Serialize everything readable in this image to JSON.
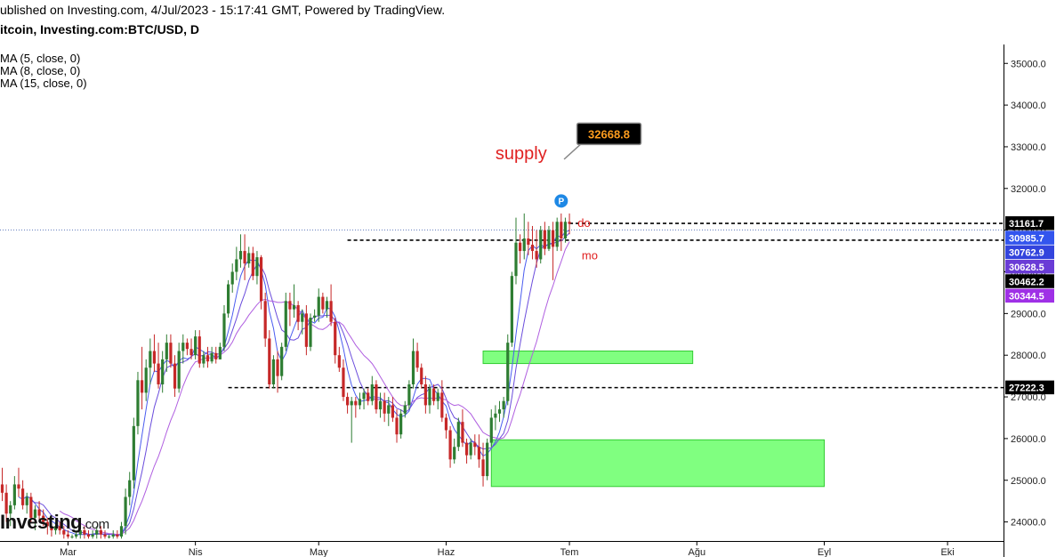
{
  "header": {
    "published": "ublished on Investing.com, 4/Jul/2023 - 15:17:41 GMT, Powered by TradingView.",
    "title": "itcoin, Investing.com:BTC/USD, D"
  },
  "indicators": [
    "MA (5, close, 0)",
    "MA (8, close, 0)",
    "MA (15, close, 0)"
  ],
  "logo": {
    "main": "Investing",
    "suffix": ".com"
  },
  "colors": {
    "up": "#2e7d32",
    "down": "#c62828",
    "zone": "#80ff80",
    "zone_border": "#33cc33",
    "ma5": "#4a5cf0",
    "ma8": "#6a4cdc",
    "ma15": "#b05fe0",
    "text_red": "#e02020"
  },
  "chart_data": {
    "type": "candlestick",
    "yaxis": {
      "range": [
        23600,
        35400
      ],
      "ticks": [
        24000,
        25000,
        26000,
        27000,
        28000,
        29000,
        30000,
        31000,
        32000,
        33000,
        34000,
        35000
      ],
      "tick_labels": [
        "24000.0",
        "25000.0",
        "26000.0",
        "27000.0",
        "28000.0",
        "29000.0",
        "30000.0",
        "31000.0",
        "32000.0",
        "33000.0",
        "34000.0",
        "35000.0"
      ]
    },
    "xaxis": {
      "labels": [
        "Mar",
        "Nis",
        "May",
        "Haz",
        "Tem",
        "Ağu",
        "Eyl",
        "Eki"
      ],
      "label_days": [
        16,
        47,
        77,
        108,
        138,
        169,
        200,
        230
      ]
    },
    "candles": [
      [
        0,
        24900,
        25300,
        24500,
        24700
      ],
      [
        1,
        24700,
        24900,
        24000,
        24200
      ],
      [
        2,
        24200,
        24500,
        23900,
        24400
      ],
      [
        3,
        24400,
        25100,
        24300,
        24900
      ],
      [
        4,
        24900,
        25300,
        24600,
        24800
      ],
      [
        5,
        24800,
        25000,
        24300,
        24400
      ],
      [
        6,
        24400,
        24700,
        24200,
        24600
      ],
      [
        7,
        24600,
        24700,
        24000,
        24100
      ],
      [
        8,
        24100,
        24400,
        23800,
        24300
      ],
      [
        9,
        24300,
        24500,
        24000,
        24150
      ],
      [
        10,
        24150,
        24300,
        23900,
        24000
      ],
      [
        11,
        24000,
        24100,
        23700,
        23900
      ],
      [
        12,
        23900,
        24000,
        23650,
        23800
      ],
      [
        13,
        23800,
        24000,
        23700,
        23900
      ],
      [
        14,
        23900,
        24000,
        23700,
        23800
      ],
      [
        15,
        23800,
        23900,
        23600,
        23700
      ],
      [
        16,
        23700,
        23800,
        23600,
        23650
      ],
      [
        17,
        23650,
        23700,
        23600,
        23650
      ],
      [
        18,
        23650,
        23800,
        23600,
        23700
      ],
      [
        19,
        23700,
        23900,
        23600,
        23800
      ],
      [
        20,
        23800,
        23900,
        23600,
        23700
      ],
      [
        21,
        23700,
        23800,
        23600,
        23650
      ],
      [
        22,
        23650,
        23800,
        23600,
        23700
      ],
      [
        23,
        23700,
        23900,
        23600,
        23800
      ],
      [
        24,
        23800,
        23900,
        23600,
        23700
      ],
      [
        25,
        23700,
        23800,
        23600,
        23650
      ],
      [
        26,
        23650,
        23700,
        23600,
        23650
      ],
      [
        27,
        23650,
        23800,
        23600,
        23700
      ],
      [
        28,
        23700,
        23800,
        23600,
        23650
      ],
      [
        29,
        23650,
        24000,
        23600,
        23900
      ],
      [
        30,
        23900,
        24800,
        23700,
        24600
      ],
      [
        31,
        24600,
        25200,
        24400,
        25000
      ],
      [
        32,
        25000,
        26500,
        24800,
        26300
      ],
      [
        33,
        26300,
        27600,
        26100,
        27400
      ],
      [
        34,
        27400,
        28200,
        26700,
        27100
      ],
      [
        35,
        27100,
        27900,
        26900,
        27700
      ],
      [
        36,
        27700,
        28400,
        27300,
        28100
      ],
      [
        37,
        28100,
        28500,
        27600,
        27800
      ],
      [
        38,
        27800,
        28300,
        27200,
        27300
      ],
      [
        39,
        27300,
        28100,
        27100,
        27900
      ],
      [
        40,
        27900,
        28500,
        27600,
        28300
      ],
      [
        41,
        28300,
        28500,
        27700,
        27800
      ],
      [
        42,
        27800,
        28000,
        27000,
        27200
      ],
      [
        43,
        27200,
        28300,
        27100,
        28100
      ],
      [
        44,
        28100,
        28500,
        27800,
        28300
      ],
      [
        45,
        28300,
        28400,
        28000,
        28150
      ],
      [
        46,
        28150,
        28400,
        27900,
        28000
      ],
      [
        47,
        28000,
        28600,
        27900,
        28450
      ],
      [
        48,
        28450,
        28600,
        27700,
        27800
      ],
      [
        49,
        27800,
        28100,
        27700,
        28000
      ],
      [
        50,
        28000,
        28200,
        27700,
        27850
      ],
      [
        51,
        27850,
        28200,
        27800,
        28050
      ],
      [
        52,
        28050,
        28200,
        27800,
        27900
      ],
      [
        53,
        27900,
        28300,
        27900,
        28200
      ],
      [
        54,
        28200,
        29200,
        28100,
        29000
      ],
      [
        55,
        29000,
        29800,
        28900,
        29700
      ],
      [
        56,
        29700,
        30200,
        29500,
        30000
      ],
      [
        57,
        30000,
        30600,
        29800,
        30300
      ],
      [
        58,
        30300,
        30900,
        30100,
        30500
      ],
      [
        59,
        30500,
        30900,
        29800,
        30200
      ],
      [
        60,
        30200,
        30600,
        30100,
        30450
      ],
      [
        61,
        30450,
        30600,
        29800,
        29900
      ],
      [
        62,
        29900,
        30500,
        29700,
        30350
      ],
      [
        63,
        30350,
        30400,
        29100,
        29300
      ],
      [
        64,
        29300,
        29500,
        28200,
        28400
      ],
      [
        65,
        28400,
        28600,
        27200,
        27300
      ],
      [
        66,
        27300,
        28000,
        27200,
        27900
      ],
      [
        67,
        27900,
        28100,
        27100,
        27500
      ],
      [
        68,
        27500,
        28300,
        27400,
        28200
      ],
      [
        69,
        28200,
        29500,
        28100,
        29300
      ],
      [
        70,
        29300,
        29500,
        28700,
        29100
      ],
      [
        71,
        29100,
        29700,
        28900,
        29200
      ],
      [
        72,
        29200,
        29300,
        28600,
        28800
      ],
      [
        73,
        28800,
        29100,
        28500,
        29000
      ],
      [
        74,
        29000,
        29200,
        28000,
        28200
      ],
      [
        75,
        28200,
        29000,
        28100,
        28900
      ],
      [
        76,
        28900,
        29100,
        28800,
        28950
      ],
      [
        77,
        28950,
        29600,
        28800,
        29400
      ],
      [
        78,
        29400,
        29500,
        29000,
        29100
      ],
      [
        79,
        29100,
        29400,
        28900,
        29300
      ],
      [
        80,
        29300,
        29700,
        28700,
        28800
      ],
      [
        81,
        28800,
        28900,
        27800,
        28000
      ],
      [
        82,
        28000,
        28200,
        27600,
        27700
      ],
      [
        83,
        27700,
        27900,
        26900,
        27000
      ],
      [
        84,
        27000,
        27100,
        26600,
        26800
      ],
      [
        85,
        26800,
        27000,
        25900,
        26900
      ],
      [
        86,
        26900,
        27000,
        26500,
        26800
      ],
      [
        87,
        26800,
        27100,
        26700,
        26950
      ],
      [
        88,
        26950,
        27200,
        26700,
        27100
      ],
      [
        89,
        27100,
        27200,
        26800,
        26900
      ],
      [
        90,
        26900,
        27500,
        26800,
        27300
      ],
      [
        91,
        27300,
        27400,
        26600,
        26700
      ],
      [
        92,
        26700,
        27100,
        26500,
        26900
      ],
      [
        93,
        26900,
        27100,
        26400,
        26600
      ],
      [
        94,
        26600,
        27000,
        26300,
        26800
      ],
      [
        95,
        26800,
        27000,
        26400,
        26500
      ],
      [
        96,
        26500,
        26700,
        25900,
        26100
      ],
      [
        97,
        26100,
        26700,
        26000,
        26600
      ],
      [
        98,
        26600,
        26900,
        26500,
        26800
      ],
      [
        99,
        26800,
        27400,
        26700,
        27300
      ],
      [
        100,
        27300,
        28400,
        27200,
        28100
      ],
      [
        101,
        28100,
        28300,
        27600,
        27700
      ],
      [
        102,
        27700,
        27800,
        27200,
        27300
      ],
      [
        103,
        27300,
        27500,
        26600,
        26800
      ],
      [
        104,
        26800,
        27300,
        26600,
        27200
      ],
      [
        105,
        27200,
        27300,
        26800,
        26900
      ],
      [
        106,
        26900,
        27200,
        26700,
        27100
      ],
      [
        107,
        27100,
        27400,
        26400,
        26500
      ],
      [
        108,
        26500,
        26600,
        26000,
        26200
      ],
      [
        109,
        26200,
        26300,
        25300,
        25500
      ],
      [
        110,
        25500,
        26000,
        25400,
        25800
      ],
      [
        111,
        25800,
        26500,
        25700,
        26400
      ],
      [
        112,
        26400,
        26700,
        25800,
        25900
      ],
      [
        113,
        25900,
        26000,
        25400,
        25600
      ],
      [
        114,
        25600,
        26000,
        25500,
        25900
      ],
      [
        115,
        25900,
        26100,
        25600,
        25800
      ],
      [
        116,
        25800,
        26100,
        25300,
        25500
      ],
      [
        117,
        25500,
        25900,
        24850,
        25100
      ],
      [
        118,
        25100,
        26000,
        25000,
        25900
      ],
      [
        119,
        25900,
        26700,
        25800,
        26500
      ],
      [
        120,
        26500,
        26800,
        26200,
        26600
      ],
      [
        121,
        26600,
        26900,
        26400,
        26700
      ],
      [
        122,
        26700,
        27000,
        26500,
        26900
      ],
      [
        123,
        26900,
        28500,
        26800,
        28300
      ],
      [
        124,
        28300,
        30000,
        28200,
        29900
      ],
      [
        125,
        29900,
        31300,
        29700,
        30700
      ],
      [
        126,
        30700,
        30900,
        30200,
        30500
      ],
      [
        127,
        30500,
        31400,
        30300,
        30800
      ],
      [
        128,
        30800,
        31200,
        30400,
        30650
      ],
      [
        129,
        30650,
        31100,
        30300,
        30500
      ],
      [
        130,
        30500,
        31000,
        30100,
        30300
      ],
      [
        131,
        30300,
        31100,
        30200,
        31000
      ],
      [
        132,
        31000,
        31200,
        30400,
        30550
      ],
      [
        133,
        30550,
        31100,
        30500,
        31000
      ],
      [
        134,
        31000,
        31200,
        29800,
        30600
      ],
      [
        135,
        30600,
        31300,
        30500,
        31200
      ],
      [
        136,
        31200,
        31400,
        30500,
        30800
      ],
      [
        137,
        30800,
        31300,
        30700,
        31200
      ],
      [
        138,
        31200,
        31400,
        30900,
        31150
      ]
    ],
    "moving_averages": [
      {
        "name": "MA (5, close, 0)",
        "period": 5,
        "color": "#4a5cf0"
      },
      {
        "name": "MA (8, close, 0)",
        "period": 8,
        "color": "#6a4cdc"
      },
      {
        "name": "MA (15, close, 0)",
        "period": 15,
        "color": "#b05fe0"
      }
    ],
    "zones": [
      {
        "x0": 117,
        "x1": 168,
        "y0": 27800,
        "y1": 28100
      },
      {
        "x0": 119,
        "x1": 200,
        "y0": 24850,
        "y1": 25970
      }
    ],
    "levels": [
      {
        "value": 31161.7,
        "x0": 138
      },
      {
        "value": 30760,
        "x0": 84
      },
      {
        "value": 27222.3,
        "x0": 55
      }
    ],
    "current_price_line": 31000,
    "price_labels": [
      {
        "value": 31161.7,
        "text": "31161.7",
        "bg": "#000000",
        "fg": "#ffffff"
      },
      {
        "value": 30985.7,
        "text": "30985.7",
        "bg": "#3355ee",
        "fg": "#ffffff"
      },
      {
        "value": 30762.9,
        "text": "30762.9",
        "bg": "#3344dd",
        "fg": "#ffffff"
      },
      {
        "value": 30628.5,
        "text": "30628.5",
        "bg": "#6a3cd6",
        "fg": "#ffffff"
      },
      {
        "value": 30462.2,
        "text": "30462.2",
        "bg": "#000000",
        "fg": "#ffffff"
      },
      {
        "value": 30344.5,
        "text": "30344.5",
        "bg": "#9f30e6",
        "fg": "#ffffff"
      },
      {
        "value": 27222.3,
        "text": "27222.3",
        "bg": "#000000",
        "fg": "#ffffff"
      }
    ],
    "annotations": [
      {
        "text": "supply",
        "x": 120,
        "y": 32700,
        "color": "#e02020",
        "size": 20
      },
      {
        "text": "do",
        "x": 140,
        "y": 31080,
        "color": "#e02020",
        "size": 13
      },
      {
        "text": "mo",
        "x": 141,
        "y": 30300,
        "color": "#e02020",
        "size": 13
      }
    ],
    "callout": {
      "text": "32668.8",
      "x": 142,
      "y": 33310,
      "target_x": 138,
      "target_y": 32700
    },
    "marker": {
      "text": "P",
      "x": 136,
      "y": 31700
    }
  }
}
